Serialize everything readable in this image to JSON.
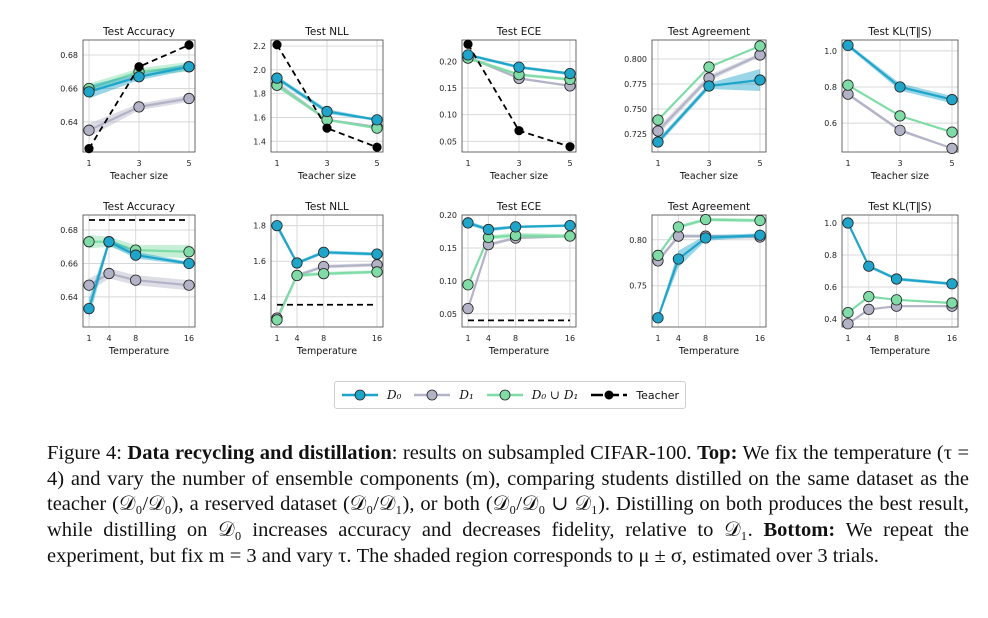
{
  "legend": {
    "items": [
      {
        "key": "D0",
        "label": "D₀",
        "color": "#1fa5c9"
      },
      {
        "key": "D1",
        "label": "D₁",
        "color": "#b3b3c8"
      },
      {
        "key": "D0uD1",
        "label": "D₀ ∪ D₁",
        "color": "#7fdca6"
      },
      {
        "key": "Teacher",
        "label": "Teacher",
        "color": "#000000"
      }
    ]
  },
  "colors": {
    "D0": "#1fa5c9",
    "D1": "#b3b3c8",
    "D0uD1": "#7fdca6",
    "Teacher": "#000000",
    "grid": "#d8d8d8"
  },
  "caption": {
    "figure_label": "Figure 4:",
    "bold_title": "Data recycling and distillation",
    "text_1": ": results on subsampled CIFAR-100.",
    "top_label": "Top:",
    "text_2": "We fix the temperature (τ = 4) and vary the number of ensemble components (m), comparing students distilled on the same dataset as the teacher (𝒟₀/𝒟₀), a reserved dataset (𝒟₀/𝒟₁), or both (𝒟₀/𝒟₀ ∪ 𝒟₁). Distilling on both produces the best result, while distilling on 𝒟₀ increases accuracy and decreases fidelity, relative to 𝒟₁.",
    "bottom_label": "Bottom:",
    "text_3": "We repeat the experiment, but fix m = 3 and vary τ. The shaded region corresponds to μ ± σ, estimated over 3 trials."
  },
  "chart_data": [
    {
      "type": "line",
      "row": "top",
      "title": "Test Accuracy",
      "xlabel": "Teacher size",
      "ylabel": "",
      "x": [
        1,
        3,
        5
      ],
      "xticks": [
        "1",
        "3",
        "5"
      ],
      "ylim": [
        0.622,
        0.689
      ],
      "yticks": [
        0.64,
        0.66,
        0.68
      ],
      "ytick_labels": [
        "0.64",
        "0.66",
        "0.68"
      ],
      "grid": true,
      "series": [
        {
          "name": "D0",
          "values": [
            0.658,
            0.667,
            0.673
          ],
          "std": [
            0.004,
            0.002,
            0.002
          ]
        },
        {
          "name": "D1",
          "values": [
            0.635,
            0.649,
            0.654
          ],
          "std": [
            0.004,
            0.002,
            0.002
          ]
        },
        {
          "name": "D0uD1",
          "values": [
            0.66,
            0.67,
            0.673
          ],
          "std": [
            0.003,
            0.002,
            0.003
          ]
        },
        {
          "name": "Teacher",
          "values": [
            0.624,
            0.673,
            0.686
          ],
          "style": "dashed"
        }
      ]
    },
    {
      "type": "line",
      "row": "top",
      "title": "Test NLL",
      "xlabel": "Teacher size",
      "ylabel": "",
      "x": [
        1,
        3,
        5
      ],
      "xticks": [
        "1",
        "3",
        "5"
      ],
      "ylim": [
        1.31,
        2.25
      ],
      "yticks": [
        1.4,
        1.6,
        1.8,
        2.0,
        2.2
      ],
      "ytick_labels": [
        "1.4",
        "1.6",
        "1.8",
        "2.0",
        "2.2"
      ],
      "grid": true,
      "series": [
        {
          "name": "D0",
          "values": [
            1.93,
            1.65,
            1.58
          ],
          "std": [
            0.02,
            0.02,
            0.01
          ]
        },
        {
          "name": "D1",
          "values": [
            1.88,
            1.58,
            1.52
          ],
          "std": [
            0.03,
            0.01,
            0.01
          ]
        },
        {
          "name": "D0uD1",
          "values": [
            1.87,
            1.58,
            1.51
          ],
          "std": [
            0.02,
            0.01,
            0.01
          ]
        },
        {
          "name": "Teacher",
          "values": [
            2.21,
            1.51,
            1.35
          ],
          "style": "dashed"
        }
      ]
    },
    {
      "type": "line",
      "row": "top",
      "title": "Test ECE",
      "xlabel": "Teacher size",
      "ylabel": "",
      "x": [
        1,
        3,
        5
      ],
      "xticks": [
        "1",
        "3",
        "5"
      ],
      "ylim": [
        0.03,
        0.24
      ],
      "yticks": [
        0.05,
        0.1,
        0.15,
        0.2
      ],
      "ytick_labels": [
        "0.05",
        "0.10",
        "0.15",
        "0.20"
      ],
      "grid": true,
      "series": [
        {
          "name": "D0",
          "values": [
            0.212,
            0.189,
            0.177
          ],
          "std": [
            0.003,
            0.003,
            0.003
          ]
        },
        {
          "name": "D1",
          "values": [
            0.208,
            0.168,
            0.154
          ],
          "std": [
            0.003,
            0.002,
            0.002
          ]
        },
        {
          "name": "D0uD1",
          "values": [
            0.206,
            0.175,
            0.166
          ],
          "std": [
            0.003,
            0.003,
            0.003
          ]
        },
        {
          "name": "Teacher",
          "values": [
            0.232,
            0.07,
            0.04
          ],
          "style": "dashed"
        }
      ]
    },
    {
      "type": "line",
      "row": "top",
      "title": "Test Agreement",
      "xlabel": "Teacher size",
      "ylabel": "",
      "x": [
        1,
        3,
        5
      ],
      "xticks": [
        "1",
        "3",
        "5"
      ],
      "ylim": [
        0.707,
        0.819
      ],
      "yticks": [
        0.725,
        0.75,
        0.775,
        0.8
      ],
      "ytick_labels": [
        "0.725",
        "0.750",
        "0.775",
        "0.800"
      ],
      "grid": true,
      "series": [
        {
          "name": "D0",
          "values": [
            0.717,
            0.773,
            0.779
          ],
          "std": [
            0.003,
            0.003,
            0.011
          ]
        },
        {
          "name": "D1",
          "values": [
            0.728,
            0.781,
            0.804
          ],
          "std": [
            0.004,
            0.003,
            0.002
          ]
        },
        {
          "name": "D0uD1",
          "values": [
            0.739,
            0.792,
            0.813
          ],
          "std": [
            0.001,
            0.001,
            0.001
          ]
        },
        {
          "name": "Teacher",
          "values": [],
          "style": "dashed"
        }
      ]
    },
    {
      "type": "line",
      "row": "top",
      "title": "Test KL(T||S)",
      "xlabel": "Teacher size",
      "ylabel": "",
      "x": [
        1,
        3,
        5
      ],
      "xticks": [
        "1",
        "3",
        "5"
      ],
      "ylim": [
        0.44,
        1.06
      ],
      "yticks": [
        0.6,
        0.8,
        1.0
      ],
      "ytick_labels": [
        "0.6",
        "0.8",
        "1.0"
      ],
      "grid": true,
      "series": [
        {
          "name": "D0",
          "values": [
            1.03,
            0.8,
            0.73
          ],
          "std": [
            0.01,
            0.02,
            0.02
          ]
        },
        {
          "name": "D1",
          "values": [
            0.76,
            0.56,
            0.46
          ],
          "std": [
            0.01,
            0.01,
            0.005
          ]
        },
        {
          "name": "D0uD1",
          "values": [
            0.81,
            0.64,
            0.55
          ],
          "std": [
            0.005,
            0.005,
            0.005
          ]
        },
        {
          "name": "Teacher",
          "values": [],
          "style": "dashed"
        }
      ]
    },
    {
      "type": "line",
      "row": "bottom",
      "title": "Test Accuracy",
      "xlabel": "Temperature",
      "ylabel": "",
      "x": [
        1,
        4,
        8,
        16
      ],
      "xticks": [
        "1",
        "4",
        "8",
        "16"
      ],
      "ylim": [
        0.622,
        0.689
      ],
      "yticks": [
        0.64,
        0.66,
        0.68
      ],
      "ytick_labels": [
        "0.64",
        "0.66",
        "0.68"
      ],
      "grid": true,
      "series": [
        {
          "name": "D0",
          "values": [
            0.633,
            0.673,
            0.665,
            0.66
          ],
          "std": [
            0.006,
            0.002,
            0.002,
            0.001
          ]
        },
        {
          "name": "D1",
          "values": [
            0.647,
            0.654,
            0.65,
            0.647
          ],
          "std": [
            0.004,
            0.003,
            0.003,
            0.003
          ]
        },
        {
          "name": "D0uD1",
          "values": [
            0.673,
            0.673,
            0.668,
            0.667
          ],
          "std": [
            0.004,
            0.003,
            0.003,
            0.004
          ]
        },
        {
          "name": "Teacher",
          "values": [
            0.686,
            0.686,
            0.686,
            0.686
          ],
          "style": "dashed",
          "markers": false
        }
      ]
    },
    {
      "type": "line",
      "row": "bottom",
      "title": "Test NLL",
      "xlabel": "Temperature",
      "ylabel": "",
      "x": [
        1,
        4,
        8,
        16
      ],
      "xticks": [
        "1",
        "4",
        "8",
        "16"
      ],
      "ylim": [
        1.23,
        1.86
      ],
      "yticks": [
        1.4,
        1.6,
        1.8
      ],
      "ytick_labels": [
        "1.4",
        "1.6",
        "1.8"
      ],
      "grid": true,
      "series": [
        {
          "name": "D0",
          "values": [
            1.8,
            1.59,
            1.65,
            1.64
          ],
          "std": [
            0.02,
            0.01,
            0.01,
            0.01
          ]
        },
        {
          "name": "D1",
          "values": [
            1.28,
            1.52,
            1.57,
            1.58
          ],
          "std": [
            0.01,
            0.01,
            0.01,
            0.01
          ]
        },
        {
          "name": "D0uD1",
          "values": [
            1.27,
            1.52,
            1.53,
            1.54
          ],
          "std": [
            0.01,
            0.01,
            0.01,
            0.01
          ]
        },
        {
          "name": "Teacher",
          "values": [
            1.355,
            1.355,
            1.355,
            1.355
          ],
          "style": "dashed",
          "markers": false
        }
      ]
    },
    {
      "type": "line",
      "row": "bottom",
      "title": "Test ECE",
      "xlabel": "Temperature",
      "ylabel": "",
      "x": [
        1,
        4,
        8,
        16
      ],
      "xticks": [
        "1",
        "4",
        "8",
        "16"
      ],
      "ylim": [
        0.03,
        0.2
      ],
      "yticks": [
        0.05,
        0.1,
        0.15,
        0.2
      ],
      "ytick_labels": [
        "0.05",
        "0.10",
        "0.15",
        "0.20"
      ],
      "grid": true,
      "series": [
        {
          "name": "D0",
          "values": [
            0.188,
            0.178,
            0.182,
            0.184
          ],
          "std": [
            0.003,
            0.003,
            0.002,
            0.002
          ]
        },
        {
          "name": "D1",
          "values": [
            0.058,
            0.155,
            0.165,
            0.168
          ],
          "std": [
            0.002,
            0.003,
            0.002,
            0.002
          ]
        },
        {
          "name": "D0uD1",
          "values": [
            0.094,
            0.166,
            0.169,
            0.168
          ],
          "std": [
            0.002,
            0.003,
            0.004,
            0.003
          ]
        },
        {
          "name": "Teacher",
          "values": [
            0.04,
            0.04,
            0.04,
            0.04
          ],
          "style": "dashed",
          "markers": false
        }
      ]
    },
    {
      "type": "line",
      "row": "bottom",
      "title": "Test Agreement",
      "xlabel": "Temperature",
      "ylabel": "",
      "x": [
        1,
        4,
        8,
        16
      ],
      "xticks": [
        "1",
        "4",
        "8",
        "16"
      ],
      "ylim": [
        0.705,
        0.827
      ],
      "yticks": [
        0.75,
        0.8
      ],
      "ytick_labels": [
        "0.75",
        "0.80"
      ],
      "grid": true,
      "series": [
        {
          "name": "D0",
          "values": [
            0.715,
            0.779,
            0.802,
            0.805
          ],
          "std": [
            0.002,
            0.009,
            0.003,
            0.002
          ]
        },
        {
          "name": "D1",
          "values": [
            0.777,
            0.804,
            0.804,
            0.803
          ],
          "std": [
            0.003,
            0.002,
            0.002,
            0.002
          ]
        },
        {
          "name": "D0uD1",
          "values": [
            0.783,
            0.814,
            0.822,
            0.821
          ],
          "std": [
            0.002,
            0.002,
            0.002,
            0.002
          ]
        },
        {
          "name": "Teacher",
          "values": [],
          "style": "dashed"
        }
      ]
    },
    {
      "type": "line",
      "row": "bottom",
      "title": "Test KL(T||S)",
      "xlabel": "Temperature",
      "ylabel": "",
      "x": [
        1,
        4,
        8,
        16
      ],
      "xticks": [
        "1",
        "4",
        "8",
        "16"
      ],
      "ylim": [
        0.35,
        1.05
      ],
      "yticks": [
        0.4,
        0.6,
        0.8,
        1.0
      ],
      "ytick_labels": [
        "0.4",
        "0.6",
        "0.8",
        "1.0"
      ],
      "grid": true,
      "series": [
        {
          "name": "D0",
          "values": [
            1.0,
            0.73,
            0.65,
            0.62
          ],
          "std": [
            0.005,
            0.01,
            0.01,
            0.01
          ]
        },
        {
          "name": "D1",
          "values": [
            0.37,
            0.46,
            0.48,
            0.48
          ],
          "std": [
            0.005,
            0.005,
            0.005,
            0.005
          ]
        },
        {
          "name": "D0uD1",
          "values": [
            0.44,
            0.54,
            0.52,
            0.5
          ],
          "std": [
            0.005,
            0.005,
            0.005,
            0.005
          ]
        },
        {
          "name": "Teacher",
          "values": [],
          "style": "dashed"
        }
      ]
    }
  ]
}
